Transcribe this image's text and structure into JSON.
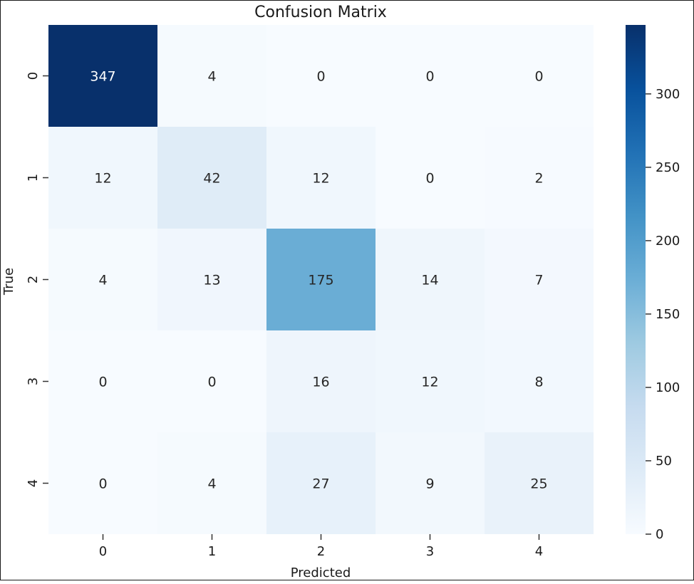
{
  "chart_data": {
    "type": "heatmap",
    "title": "Confusion Matrix",
    "xlabel": "Predicted",
    "ylabel": "True",
    "x_categories": [
      "0",
      "1",
      "2",
      "3",
      "4"
    ],
    "y_categories": [
      "0",
      "1",
      "2",
      "3",
      "4"
    ],
    "values": [
      [
        347,
        4,
        0,
        0,
        0
      ],
      [
        12,
        42,
        12,
        0,
        2
      ],
      [
        4,
        13,
        175,
        14,
        7
      ],
      [
        0,
        0,
        16,
        12,
        8
      ],
      [
        0,
        4,
        27,
        9,
        25
      ]
    ],
    "colormap": "Blues",
    "vmin": 0,
    "vmax": 347,
    "colorbar_ticks": [
      0,
      50,
      100,
      150,
      200,
      250,
      300
    ],
    "colorbar_tick_labels": [
      "0",
      "50",
      "100",
      "150",
      "200",
      "250",
      "300"
    ]
  }
}
